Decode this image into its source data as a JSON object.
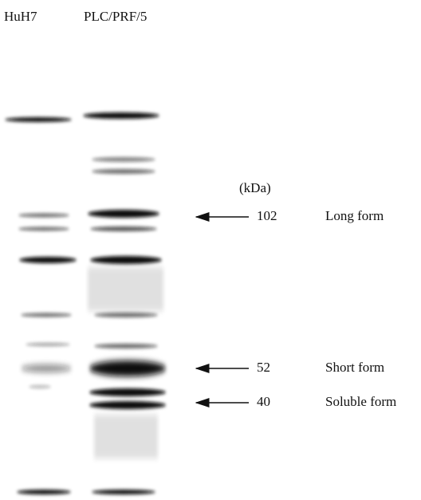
{
  "header": {
    "lanes": [
      "HuH7",
      "PLC/PRF/5"
    ]
  },
  "unit": "(kDa)",
  "markers": [
    {
      "kda": 102,
      "label": "Long form"
    },
    {
      "kda": 52,
      "label": "Short form"
    },
    {
      "kda": 40,
      "label": "Soluble form"
    }
  ]
}
